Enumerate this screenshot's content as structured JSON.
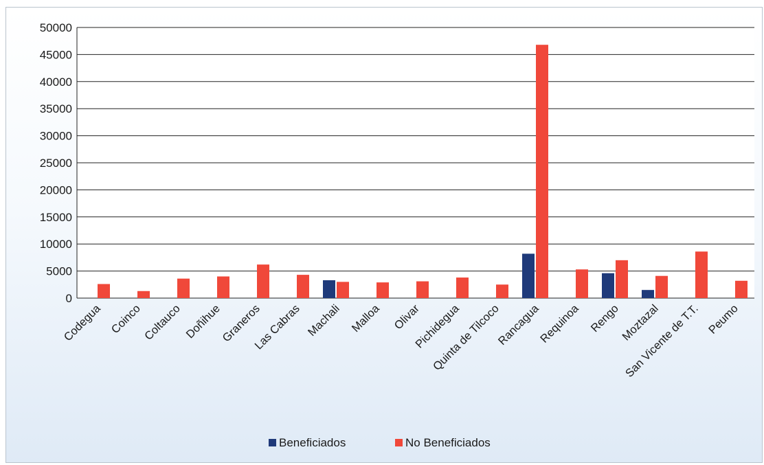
{
  "chart_data": {
    "type": "bar",
    "title": "",
    "xlabel": "",
    "ylabel": "",
    "ylim": [
      0,
      50000
    ],
    "yticks": [
      0,
      5000,
      10000,
      15000,
      20000,
      25000,
      30000,
      35000,
      40000,
      45000,
      50000
    ],
    "grid": true,
    "legend_position": "bottom",
    "categories": [
      "Codegua",
      "Coinco",
      "Coltauco",
      "Doñihue",
      "Graneros",
      "Las Cabras",
      "Machali",
      "Malloa",
      "Olivar",
      "Pichidegua",
      "Quinta de Tilcoco",
      "Rancagua",
      "Requinoa",
      "Rengo",
      "Moztazal",
      "San Vicente de T.T.",
      "Peumo"
    ],
    "series": [
      {
        "name": "Beneficiados",
        "color": "#1f3a7a",
        "values": [
          0,
          0,
          0,
          0,
          0,
          0,
          3300,
          0,
          0,
          0,
          0,
          8200,
          0,
          4600,
          1500,
          0,
          0
        ]
      },
      {
        "name": "No Beneficiados",
        "color": "#f0483a",
        "values": [
          2600,
          1300,
          3600,
          4000,
          6200,
          4300,
          3000,
          2900,
          3100,
          3800,
          2500,
          46800,
          5300,
          7000,
          4100,
          8600,
          3200
        ]
      }
    ]
  }
}
